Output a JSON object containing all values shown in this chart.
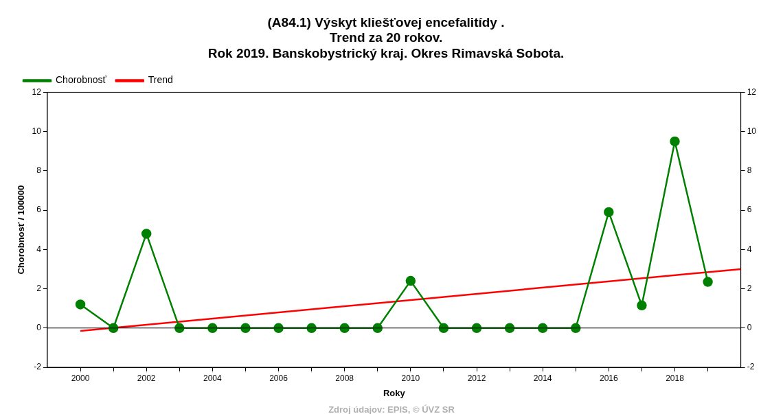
{
  "chart_data": {
    "type": "line",
    "title": "(A84.1) Výskyt kliešťovej encefalitídy .\nTrend za 20 rokov.\nRok 2019. Banskobystrický kraj. Okres Rimavská Sobota.",
    "xlabel": "Roky",
    "ylabel": "Chorobnosť / 100000",
    "x": [
      2000,
      2001,
      2002,
      2003,
      2004,
      2005,
      2006,
      2007,
      2008,
      2009,
      2010,
      2011,
      2012,
      2013,
      2014,
      2015,
      2016,
      2017,
      2018,
      2019
    ],
    "series": [
      {
        "name": "Chorobnosť",
        "color": "#008000",
        "marker": "circle",
        "values": [
          1.2,
          0,
          4.8,
          0,
          0,
          0,
          0,
          0,
          0,
          0,
          2.4,
          0,
          0,
          0,
          0,
          0,
          5.9,
          1.15,
          9.5,
          2.35
        ]
      },
      {
        "name": "Trend",
        "color": "#ff0000",
        "type": "line",
        "marker": "none",
        "x": [
          2000,
          2020
        ],
        "values": [
          -0.15,
          3.0
        ]
      }
    ],
    "xlim": [
      1999,
      2020
    ],
    "xticks": [
      2000,
      {
        "value": 2001,
        "label": null
      },
      2002,
      {
        "value": 2003,
        "label": null
      },
      2004,
      {
        "value": 2005,
        "label": null
      },
      2006,
      {
        "value": 2007,
        "label": null
      },
      2008,
      {
        "value": 2009,
        "label": null
      },
      2010,
      {
        "value": 2011,
        "label": null
      },
      2012,
      {
        "value": 2013,
        "label": null
      },
      2014,
      {
        "value": 2015,
        "label": null
      },
      2016,
      {
        "value": 2017,
        "label": null
      },
      2018,
      {
        "value": 2019,
        "label": null
      }
    ],
    "ylim": [
      -2,
      12
    ],
    "yticks": [
      -2,
      0,
      2,
      4,
      6,
      8,
      10,
      12
    ],
    "y2lim": [
      -2,
      12
    ],
    "y2ticks": [
      -2,
      0,
      2,
      4,
      6,
      8,
      10,
      12
    ],
    "ref_lines": [
      {
        "axis": "y",
        "value": 0,
        "color": "#000000"
      }
    ],
    "annotations": [
      "Zdroj údajov: EPIS, © ÚVZ SR"
    ],
    "grid": false,
    "legend": "top left",
    "line_style": "solid"
  }
}
